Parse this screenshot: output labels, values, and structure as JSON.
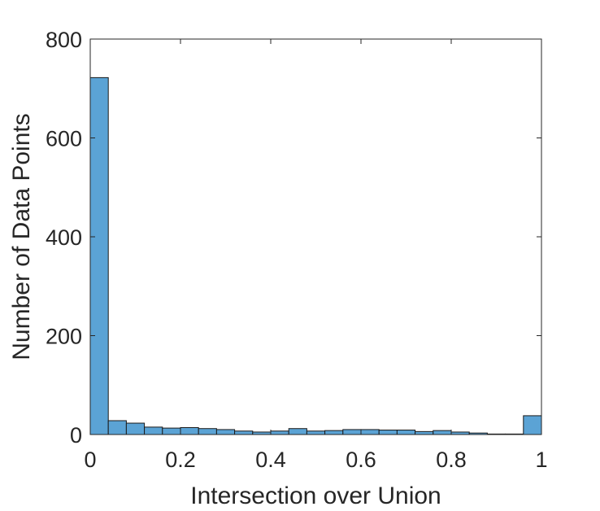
{
  "chart_data": {
    "type": "bar",
    "subtype": "histogram",
    "xlabel": "Intersection over Union",
    "ylabel": "Number of Data Points",
    "xlim": [
      0,
      1
    ],
    "ylim": [
      0,
      800
    ],
    "xticks": [
      0,
      0.2,
      0.4,
      0.6,
      0.8,
      1
    ],
    "xtick_labels": [
      "0",
      "0.2",
      "0.4",
      "0.6",
      "0.8",
      "1"
    ],
    "yticks": [
      0,
      200,
      400,
      600,
      800
    ],
    "ytick_labels": [
      "0",
      "200",
      "400",
      "600",
      "800"
    ],
    "bin_width": 0.04,
    "bin_edges_start": [
      0,
      0.04,
      0.08,
      0.12,
      0.16,
      0.2,
      0.24,
      0.28,
      0.32,
      0.36,
      0.4,
      0.44,
      0.48,
      0.52,
      0.56,
      0.6,
      0.64,
      0.68,
      0.72,
      0.76,
      0.8,
      0.84,
      0.88,
      0.92,
      0.96
    ],
    "values": [
      722,
      28,
      23,
      15,
      13,
      14,
      12,
      10,
      7,
      5,
      7,
      12,
      7,
      8,
      10,
      10,
      9,
      9,
      6,
      8,
      5,
      3,
      1,
      1,
      38
    ],
    "bar_color": "#5ba3d5",
    "grid": false,
    "box": true
  }
}
